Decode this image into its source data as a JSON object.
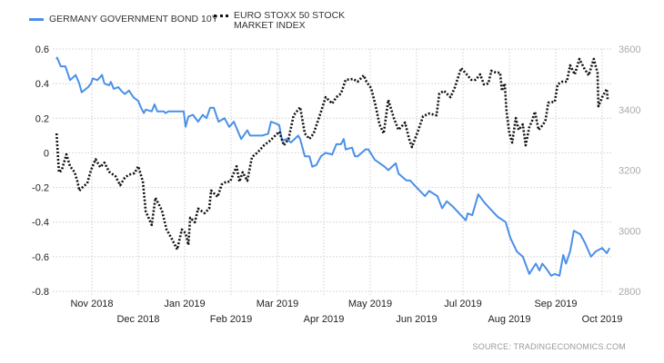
{
  "chart_data": {
    "type": "line",
    "x_unit": "months since 2018-10-01",
    "xlim": [
      0.24,
      12.16
    ],
    "x_ticks": [
      {
        "m": 1,
        "label": "Nov 2018",
        "row": 1
      },
      {
        "m": 2,
        "label": "Dec 2018",
        "row": 2
      },
      {
        "m": 3,
        "label": "Jan 2019",
        "row": 1
      },
      {
        "m": 4,
        "label": "Feb 2019",
        "row": 2
      },
      {
        "m": 5,
        "label": "Mar 2019",
        "row": 1
      },
      {
        "m": 6,
        "label": "Apr 2019",
        "row": 2
      },
      {
        "m": 7,
        "label": "May 2019",
        "row": 1
      },
      {
        "m": 8,
        "label": "Jun 2019",
        "row": 2
      },
      {
        "m": 9,
        "label": "Jul 2019",
        "row": 1
      },
      {
        "m": 10,
        "label": "Aug 2019",
        "row": 2
      },
      {
        "m": 11,
        "label": "Sep 2019",
        "row": 1
      },
      {
        "m": 12,
        "label": "Oct 2019",
        "row": 2
      }
    ],
    "y_left": {
      "range": [
        -0.8,
        0.6
      ],
      "ticks": [
        "0.6",
        "0.4",
        "0.2",
        "0",
        "-0.2",
        "-0.4",
        "-0.6",
        "-0.8"
      ]
    },
    "y_right": {
      "range": [
        2800,
        3600
      ],
      "ticks": [
        "3600",
        "3400",
        "3200",
        "3000",
        "2800"
      ]
    },
    "grid": true,
    "legend_position": "top-left",
    "series": [
      {
        "name": "GERMANY GOVERNMENT BOND 10Y",
        "axis": "left",
        "color": "#4a90e8",
        "style": "solid",
        "points": [
          [
            0.24,
            0.54
          ],
          [
            0.25,
            0.55
          ],
          [
            0.33,
            0.5
          ],
          [
            0.43,
            0.5
          ],
          [
            0.53,
            0.42
          ],
          [
            0.65,
            0.45
          ],
          [
            0.73,
            0.4
          ],
          [
            0.78,
            0.35
          ],
          [
            0.92,
            0.38
          ],
          [
            0.98,
            0.4
          ],
          [
            1.02,
            0.43
          ],
          [
            1.12,
            0.42
          ],
          [
            1.22,
            0.45
          ],
          [
            1.27,
            0.4
          ],
          [
            1.37,
            0.39
          ],
          [
            1.41,
            0.41
          ],
          [
            1.47,
            0.37
          ],
          [
            1.57,
            0.38
          ],
          [
            1.63,
            0.36
          ],
          [
            1.71,
            0.34
          ],
          [
            1.8,
            0.36
          ],
          [
            1.9,
            0.32
          ],
          [
            2.0,
            0.3
          ],
          [
            2.06,
            0.26
          ],
          [
            2.12,
            0.23
          ],
          [
            2.16,
            0.25
          ],
          [
            2.29,
            0.24
          ],
          [
            2.35,
            0.28
          ],
          [
            2.41,
            0.24
          ],
          [
            2.55,
            0.24
          ],
          [
            2.59,
            0.23
          ],
          [
            2.65,
            0.24
          ],
          [
            2.78,
            0.24
          ],
          [
            2.98,
            0.24
          ],
          [
            3.02,
            0.15
          ],
          [
            3.08,
            0.21
          ],
          [
            3.18,
            0.22
          ],
          [
            3.29,
            0.18
          ],
          [
            3.39,
            0.22
          ],
          [
            3.47,
            0.2
          ],
          [
            3.55,
            0.26
          ],
          [
            3.63,
            0.26
          ],
          [
            3.73,
            0.18
          ],
          [
            3.86,
            0.2
          ],
          [
            3.96,
            0.15
          ],
          [
            4.06,
            0.18
          ],
          [
            4.22,
            0.08
          ],
          [
            4.35,
            0.13
          ],
          [
            4.41,
            0.1
          ],
          [
            4.57,
            0.1
          ],
          [
            4.67,
            0.1
          ],
          [
            4.8,
            0.11
          ],
          [
            4.86,
            0.18
          ],
          [
            4.96,
            0.17
          ],
          [
            5.04,
            0.16
          ],
          [
            5.1,
            0.07
          ],
          [
            5.2,
            0.08
          ],
          [
            5.29,
            0.06
          ],
          [
            5.45,
            0.1
          ],
          [
            5.49,
            0.08
          ],
          [
            5.59,
            -0.02
          ],
          [
            5.69,
            -0.02
          ],
          [
            5.75,
            -0.08
          ],
          [
            5.84,
            -0.07
          ],
          [
            5.94,
            -0.02
          ],
          [
            6.04,
            0.0
          ],
          [
            6.18,
            -0.01
          ],
          [
            6.27,
            0.05
          ],
          [
            6.37,
            0.05
          ],
          [
            6.43,
            0.08
          ],
          [
            6.47,
            0.02
          ],
          [
            6.61,
            0.03
          ],
          [
            6.67,
            -0.02
          ],
          [
            6.73,
            -0.02
          ],
          [
            6.9,
            0.02
          ],
          [
            6.96,
            0.02
          ],
          [
            7.1,
            -0.04
          ],
          [
            7.31,
            -0.08
          ],
          [
            7.39,
            -0.1
          ],
          [
            7.55,
            -0.06
          ],
          [
            7.61,
            -0.12
          ],
          [
            7.78,
            -0.16
          ],
          [
            7.86,
            -0.16
          ],
          [
            8.0,
            -0.2
          ],
          [
            8.18,
            -0.25
          ],
          [
            8.27,
            -0.22
          ],
          [
            8.45,
            -0.25
          ],
          [
            8.55,
            -0.32
          ],
          [
            8.65,
            -0.28
          ],
          [
            8.78,
            -0.31
          ],
          [
            8.92,
            -0.35
          ],
          [
            9.06,
            -0.39
          ],
          [
            9.1,
            -0.35
          ],
          [
            9.2,
            -0.36
          ],
          [
            9.33,
            -0.24
          ],
          [
            9.47,
            -0.29
          ],
          [
            9.61,
            -0.33
          ],
          [
            9.75,
            -0.37
          ],
          [
            9.92,
            -0.4
          ],
          [
            10.02,
            -0.49
          ],
          [
            10.16,
            -0.57
          ],
          [
            10.29,
            -0.6
          ],
          [
            10.43,
            -0.7
          ],
          [
            10.57,
            -0.64
          ],
          [
            10.65,
            -0.68
          ],
          [
            10.71,
            -0.64
          ],
          [
            10.8,
            -0.67
          ],
          [
            10.9,
            -0.71
          ],
          [
            10.98,
            -0.7
          ],
          [
            11.08,
            -0.71
          ],
          [
            11.16,
            -0.59
          ],
          [
            11.22,
            -0.64
          ],
          [
            11.31,
            -0.57
          ],
          [
            11.39,
            -0.45
          ],
          [
            11.53,
            -0.47
          ],
          [
            11.63,
            -0.52
          ],
          [
            11.76,
            -0.6
          ],
          [
            11.86,
            -0.57
          ],
          [
            12.0,
            -0.55
          ],
          [
            12.1,
            -0.58
          ],
          [
            12.16,
            -0.55
          ]
        ]
      },
      {
        "name": "EURO STOXX 50 STOCK MARKET INDEX",
        "axis": "right",
        "color": "#111111",
        "style": "dotted",
        "points": [
          [
            0.24,
            3321
          ],
          [
            0.29,
            3193
          ],
          [
            0.35,
            3199
          ],
          [
            0.45,
            3252
          ],
          [
            0.53,
            3213
          ],
          [
            0.63,
            3193
          ],
          [
            0.69,
            3162
          ],
          [
            0.73,
            3132
          ],
          [
            0.82,
            3147
          ],
          [
            0.9,
            3156
          ],
          [
            0.98,
            3200
          ],
          [
            1.08,
            3236
          ],
          [
            1.18,
            3210
          ],
          [
            1.27,
            3225
          ],
          [
            1.37,
            3195
          ],
          [
            1.51,
            3180
          ],
          [
            1.61,
            3150
          ],
          [
            1.71,
            3175
          ],
          [
            1.8,
            3185
          ],
          [
            1.92,
            3190
          ],
          [
            2.0,
            3213
          ],
          [
            2.1,
            3162
          ],
          [
            2.16,
            3064
          ],
          [
            2.29,
            3019
          ],
          [
            2.37,
            3109
          ],
          [
            2.51,
            3067
          ],
          [
            2.61,
            3004
          ],
          [
            2.71,
            2977
          ],
          [
            2.84,
            2938
          ],
          [
            2.94,
            3004
          ],
          [
            3.02,
            2992
          ],
          [
            3.08,
            2953
          ],
          [
            3.12,
            3043
          ],
          [
            3.22,
            3028
          ],
          [
            3.29,
            3073
          ],
          [
            3.43,
            3058
          ],
          [
            3.53,
            3073
          ],
          [
            3.57,
            3133
          ],
          [
            3.71,
            3112
          ],
          [
            3.8,
            3153
          ],
          [
            3.9,
            3162
          ],
          [
            3.98,
            3162
          ],
          [
            4.12,
            3213
          ],
          [
            4.18,
            3162
          ],
          [
            4.25,
            3193
          ],
          [
            4.35,
            3165
          ],
          [
            4.45,
            3243
          ],
          [
            4.57,
            3258
          ],
          [
            4.71,
            3282
          ],
          [
            4.84,
            3297
          ],
          [
            5.04,
            3327
          ],
          [
            5.14,
            3282
          ],
          [
            5.24,
            3303
          ],
          [
            5.35,
            3381
          ],
          [
            5.49,
            3408
          ],
          [
            5.59,
            3321
          ],
          [
            5.69,
            3303
          ],
          [
            5.78,
            3321
          ],
          [
            5.94,
            3393
          ],
          [
            6.04,
            3441
          ],
          [
            6.18,
            3420
          ],
          [
            6.27,
            3441
          ],
          [
            6.37,
            3453
          ],
          [
            6.47,
            3498
          ],
          [
            6.63,
            3501
          ],
          [
            6.73,
            3492
          ],
          [
            6.86,
            3513
          ],
          [
            6.92,
            3492
          ],
          [
            7.02,
            3471
          ],
          [
            7.12,
            3411
          ],
          [
            7.2,
            3351
          ],
          [
            7.29,
            3321
          ],
          [
            7.39,
            3432
          ],
          [
            7.51,
            3372
          ],
          [
            7.61,
            3333
          ],
          [
            7.75,
            3357
          ],
          [
            7.84,
            3303
          ],
          [
            7.9,
            3276
          ],
          [
            8.04,
            3333
          ],
          [
            8.14,
            3378
          ],
          [
            8.27,
            3387
          ],
          [
            8.43,
            3381
          ],
          [
            8.49,
            3453
          ],
          [
            8.59,
            3462
          ],
          [
            8.73,
            3441
          ],
          [
            8.82,
            3471
          ],
          [
            8.96,
            3537
          ],
          [
            9.08,
            3516
          ],
          [
            9.18,
            3498
          ],
          [
            9.27,
            3498
          ],
          [
            9.37,
            3516
          ],
          [
            9.45,
            3483
          ],
          [
            9.55,
            3486
          ],
          [
            9.61,
            3528
          ],
          [
            9.71,
            3522
          ],
          [
            9.8,
            3522
          ],
          [
            9.84,
            3462
          ],
          [
            9.9,
            3486
          ],
          [
            9.94,
            3393
          ],
          [
            10.0,
            3321
          ],
          [
            10.06,
            3291
          ],
          [
            10.14,
            3372
          ],
          [
            10.2,
            3333
          ],
          [
            10.29,
            3351
          ],
          [
            10.35,
            3282
          ],
          [
            10.43,
            3342
          ],
          [
            10.49,
            3363
          ],
          [
            10.55,
            3393
          ],
          [
            10.63,
            3333
          ],
          [
            10.73,
            3351
          ],
          [
            10.78,
            3366
          ],
          [
            10.84,
            3423
          ],
          [
            10.98,
            3426
          ],
          [
            11.04,
            3483
          ],
          [
            11.14,
            3492
          ],
          [
            11.24,
            3492
          ],
          [
            11.31,
            3546
          ],
          [
            11.41,
            3516
          ],
          [
            11.51,
            3567
          ],
          [
            11.61,
            3537
          ],
          [
            11.71,
            3513
          ],
          [
            11.82,
            3567
          ],
          [
            11.9,
            3522
          ],
          [
            11.92,
            3411
          ],
          [
            12.0,
            3441
          ],
          [
            12.1,
            3468
          ],
          [
            12.12,
            3432
          ]
        ]
      }
    ],
    "source": "SOURCE:   TRADINGECONOMICS.COM"
  }
}
